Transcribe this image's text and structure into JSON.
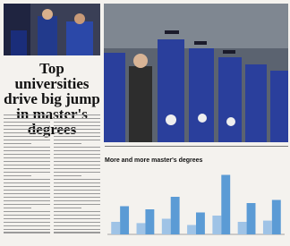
{
  "article": {
    "headline": "Top universities drive big jump in master's degrees"
  },
  "chart_data": {
    "type": "bar",
    "title": "More and more master's degrees",
    "categories": [
      null,
      null,
      null,
      null,
      null,
      null,
      null
    ],
    "series": [
      {
        "color": "#9fc3e6",
        "values": [
          20,
          18,
          25,
          15,
          30,
          20,
          22
        ]
      },
      {
        "color": "#5b9bd5",
        "values": [
          45,
          40,
          60,
          35,
          95,
          50,
          55
        ]
      }
    ],
    "ylim": [
      0,
      100
    ]
  }
}
